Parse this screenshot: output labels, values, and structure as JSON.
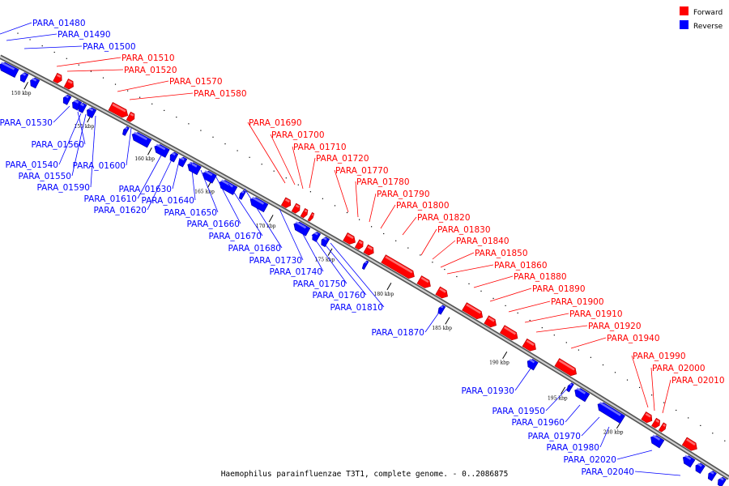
{
  "legend": [
    {
      "label": "Forward",
      "color": "#ff0000"
    },
    {
      "label": "Reverse",
      "color": "#0000ff"
    }
  ],
  "caption": "Haemophilus parainfluenzae T3T1, complete genome. - 0..2086875",
  "colors": {
    "forward": "#ff0000",
    "reverse": "#0000ff",
    "backbone": "#888888",
    "tick": "#000000"
  },
  "ticks": [
    {
      "label": "150 kbp",
      "kbp": 150
    },
    {
      "label": "155 kbp",
      "kbp": 155
    },
    {
      "label": "160 kbp",
      "kbp": 160
    },
    {
      "label": "165 kbp",
      "kbp": 165
    },
    {
      "label": "170 kbp",
      "kbp": 170
    },
    {
      "label": "175 kbp",
      "kbp": 175
    },
    {
      "label": "180 kbp",
      "kbp": 180
    },
    {
      "label": "185 kbp",
      "kbp": 185
    },
    {
      "label": "190 kbp",
      "kbp": 190
    },
    {
      "label": "195 kbp",
      "kbp": 195
    },
    {
      "label": "200 kbp",
      "kbp": 200
    }
  ],
  "forward_genes": [
    "PARA_01510",
    "PARA_01520",
    "PARA_01570",
    "PARA_01580",
    "PARA_01690",
    "PARA_01700",
    "PARA_01710",
    "PARA_01720",
    "PARA_01770",
    "PARA_01780",
    "PARA_01790",
    "PARA_01800",
    "PARA_01820",
    "PARA_01830",
    "PARA_01840",
    "PARA_01850",
    "PARA_01860",
    "PARA_01880",
    "PARA_01890",
    "PARA_01900",
    "PARA_01910",
    "PARA_01920",
    "PARA_01940",
    "PARA_01990",
    "PARA_02000",
    "PARA_02010"
  ],
  "reverse_genes": [
    "PARA_01480",
    "PARA_01490",
    "PARA_01500",
    "PARA_01530",
    "PARA_01560",
    "PARA_01540",
    "PARA_01550",
    "PARA_01590",
    "PARA_01600",
    "PARA_01610",
    "PARA_01620",
    "PARA_01630",
    "PARA_01640",
    "PARA_01650",
    "PARA_01660",
    "PARA_01670",
    "PARA_01680",
    "PARA_01730",
    "PARA_01740",
    "PARA_01750",
    "PARA_01760",
    "PARA_01810",
    "PARA_01870",
    "PARA_01930",
    "PARA_01950",
    "PARA_01960",
    "PARA_01970",
    "PARA_01980",
    "PARA_02020",
    "PARA_02040"
  ]
}
